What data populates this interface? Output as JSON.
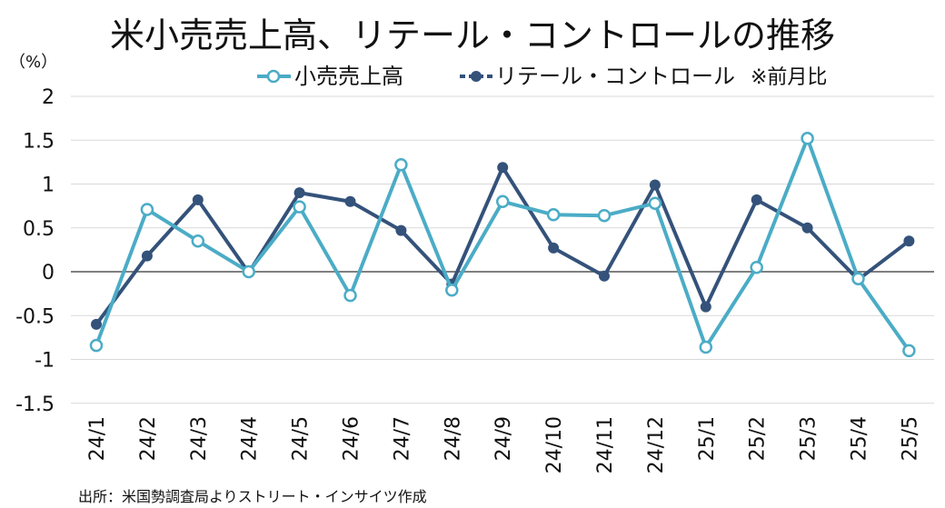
{
  "chart_data": {
    "type": "line",
    "title": "米小売売上高、リテール・コントロールの推移",
    "unit_label": "（%）",
    "note": "※前月比",
    "source": "出所：米国勢調査局よりストリート・インサイツ作成",
    "categories": [
      "24/1",
      "24/2",
      "24/3",
      "24/4",
      "24/5",
      "24/6",
      "24/7",
      "24/8",
      "24/9",
      "24/10",
      "24/11",
      "24/12",
      "25/1",
      "25/2",
      "25/3",
      "25/4",
      "25/5"
    ],
    "ylim": [
      -1.5,
      2
    ],
    "yticks": [
      "2",
      "1.5",
      "1",
      "0.5",
      "0",
      "-0.5",
      "-1",
      "-1.5"
    ],
    "ytick_values": [
      2,
      1.5,
      1,
      0.5,
      0,
      -0.5,
      -1,
      -1.5
    ],
    "grid": true,
    "legend_position": "top",
    "series": [
      {
        "name": "小売売上高",
        "color": "#4BACC6",
        "marker": "hollow-circle",
        "values": [
          -0.84,
          0.71,
          0.35,
          0.0,
          0.74,
          -0.27,
          1.22,
          -0.21,
          0.8,
          0.65,
          0.64,
          0.78,
          -0.86,
          0.05,
          1.52,
          -0.08,
          -0.9
        ]
      },
      {
        "name": "リテール・コントロール",
        "color": "#34527A",
        "marker": "filled-circle",
        "values": [
          -0.6,
          0.18,
          0.82,
          -0.01,
          0.9,
          0.8,
          0.47,
          -0.14,
          1.19,
          0.27,
          -0.05,
          0.99,
          -0.4,
          0.82,
          0.5,
          -0.09,
          0.35
        ]
      }
    ]
  }
}
